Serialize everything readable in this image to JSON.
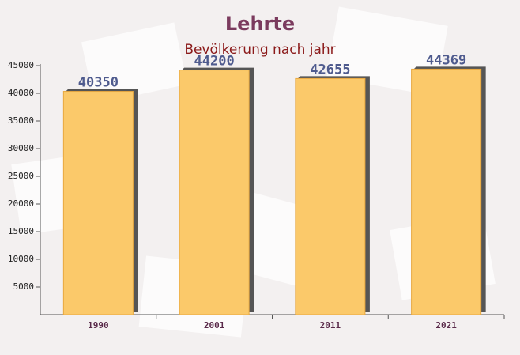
{
  "chart_data": {
    "type": "bar",
    "title": "Lehrte",
    "subtitle": "Bevölkerung nach jahr",
    "categories": [
      "1990",
      "2001",
      "2011",
      "2021"
    ],
    "values": [
      40350,
      44200,
      42655,
      44369
    ],
    "color": "#fbc96a",
    "ylim": [
      0,
      45000
    ],
    "yticks": [
      5000,
      10000,
      15000,
      20000,
      25000,
      30000,
      35000,
      40000,
      45000
    ],
    "grid": false
  }
}
